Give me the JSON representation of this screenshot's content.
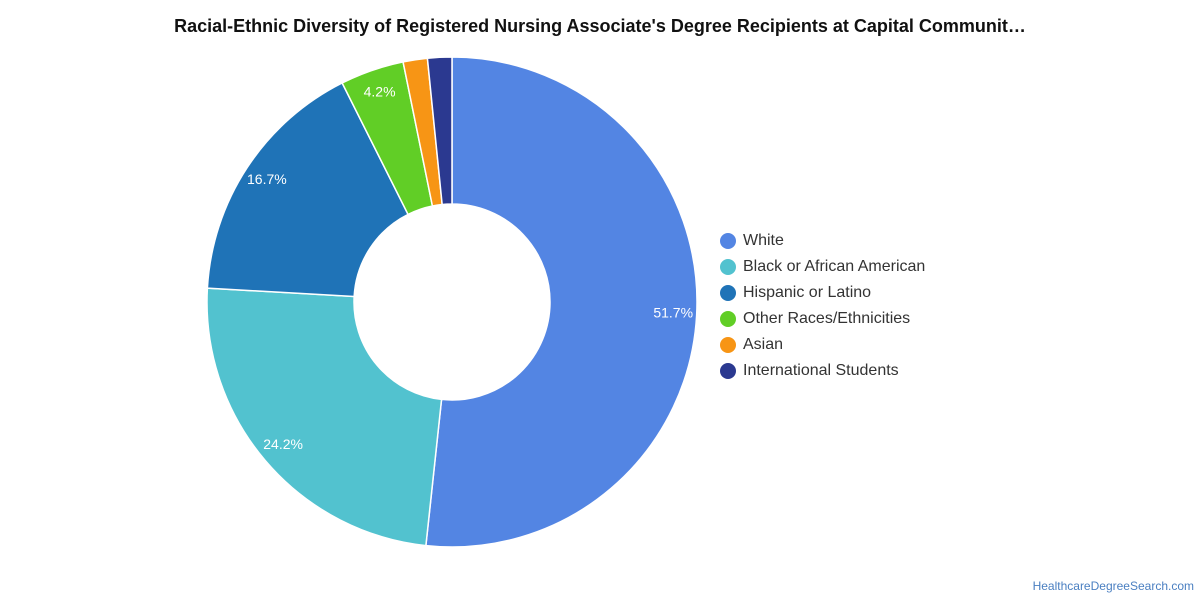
{
  "chart_data": {
    "type": "pie",
    "variant": "donut",
    "title": "Racial-Ethnic Diversity of Registered Nursing Associate's Degree Recipients at Capital Communit…",
    "unit": "%",
    "legend_position": "right",
    "slices": [
      {
        "name": "White",
        "value": 51.7,
        "label": "51.7%",
        "color": "#5385e3"
      },
      {
        "name": "Black or African American",
        "value": 24.2,
        "label": "24.2%",
        "color": "#52c2cf"
      },
      {
        "name": "Hispanic or Latino",
        "value": 16.7,
        "label": "16.7%",
        "color": "#1f73b7"
      },
      {
        "name": "Other Races/Ethnicities",
        "value": 4.2,
        "label": "4.2%",
        "color": "#61ce26"
      },
      {
        "name": "Asian",
        "value": 1.6,
        "label": "",
        "color": "#f79515"
      },
      {
        "name": "International Students",
        "value": 1.6,
        "label": "",
        "color": "#2b3990"
      }
    ]
  },
  "source": "HealthcareDegreeSearch.com"
}
